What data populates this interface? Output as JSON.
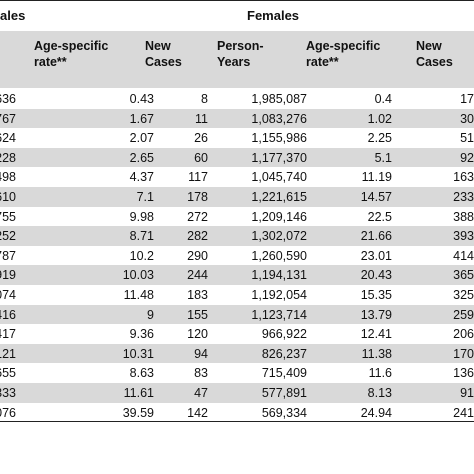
{
  "groups": {
    "males": "ales",
    "females": "Females"
  },
  "columns": {
    "m_rate": "Age-specific\nrate**",
    "f_new": "New\nCases",
    "f_py": "Person-\nYears",
    "f_rate": "Age-specific\nrate**",
    "t_new": "New\nCases"
  },
  "rows": [
    {
      "m_py": "636",
      "m_rate": "0.43",
      "f_new": "8",
      "f_py": "1,985,087",
      "f_rate": "0.4",
      "t_new": "17"
    },
    {
      "m_py": "767",
      "m_rate": "1.67",
      "f_new": "11",
      "f_py": "1,083,276",
      "f_rate": "1.02",
      "t_new": "30"
    },
    {
      "m_py": "624",
      "m_rate": "2.07",
      "f_new": "26",
      "f_py": "1,155,986",
      "f_rate": "2.25",
      "t_new": "51"
    },
    {
      "m_py": "228",
      "m_rate": "2.65",
      "f_new": "60",
      "f_py": "1,177,370",
      "f_rate": "5.1",
      "t_new": "92"
    },
    {
      "m_py": "498",
      "m_rate": "4.37",
      "f_new": "117",
      "f_py": "1,045,740",
      "f_rate": "11.19",
      "t_new": "163"
    },
    {
      "m_py": "610",
      "m_rate": "7.1",
      "f_new": "178",
      "f_py": "1,221,615",
      "f_rate": "14.57",
      "t_new": "233"
    },
    {
      "m_py": "755",
      "m_rate": "9.98",
      "f_new": "272",
      "f_py": "1,209,146",
      "f_rate": "22.5",
      "t_new": "388"
    },
    {
      "m_py": "252",
      "m_rate": "8.71",
      "f_new": "282",
      "f_py": "1,302,072",
      "f_rate": "21.66",
      "t_new": "393"
    },
    {
      "m_py": "787",
      "m_rate": "10.2",
      "f_new": "290",
      "f_py": "1,260,590",
      "f_rate": "23.01",
      "t_new": "414"
    },
    {
      "m_py": "919",
      "m_rate": "10.03",
      "f_new": "244",
      "f_py": "1,194,131",
      "f_rate": "20.43",
      "t_new": "365"
    },
    {
      "m_py": "074",
      "m_rate": "11.48",
      "f_new": "183",
      "f_py": "1,192,054",
      "f_rate": "15.35",
      "t_new": "325"
    },
    {
      "m_py": "416",
      "m_rate": "9",
      "f_new": "155",
      "f_py": "1,123,714",
      "f_rate": "13.79",
      "t_new": "259"
    },
    {
      "m_py": "417",
      "m_rate": "9.36",
      "f_new": "120",
      "f_py": "966,922",
      "f_rate": "12.41",
      "t_new": "206"
    },
    {
      "m_py": "121",
      "m_rate": "10.31",
      "f_new": "94",
      "f_py": "826,237",
      "f_rate": "11.38",
      "t_new": "170"
    },
    {
      "m_py": "655",
      "m_rate": "8.63",
      "f_new": "83",
      "f_py": "715,409",
      "f_rate": "11.6",
      "t_new": "136"
    },
    {
      "m_py": "333",
      "m_rate": "11.61",
      "f_new": "47",
      "f_py": "577,891",
      "f_rate": "8.13",
      "t_new": "91"
    },
    {
      "m_py": "076",
      "m_rate": "39.59",
      "f_new": "142",
      "f_py": "569,334",
      "f_rate": "24.94",
      "t_new": "241"
    }
  ]
}
